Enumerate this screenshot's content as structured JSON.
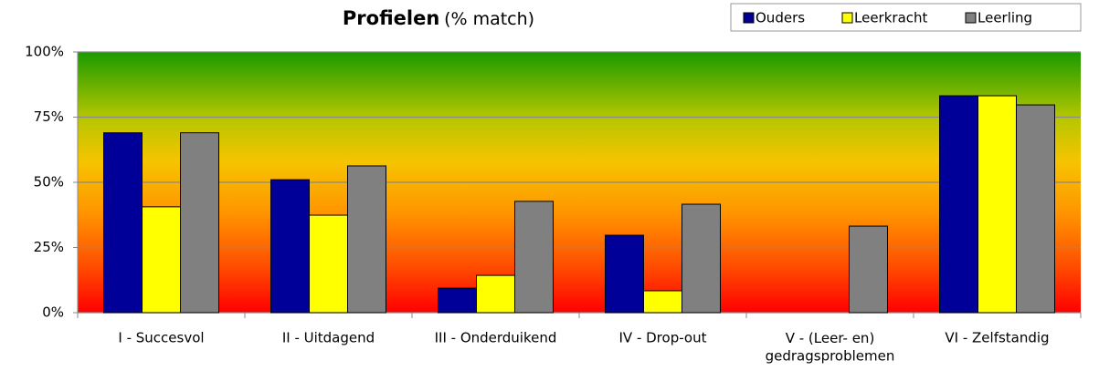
{
  "chart_data": {
    "type": "bar",
    "title": "Profielen",
    "subtitle": "(% match)",
    "categories": [
      "I - Succesvol",
      "II - Uitdagend",
      "III - Onderduikend",
      "IV - Drop-out",
      "V - (Leer- en)\ngedragsproblemen",
      "VI - Zelfstandig"
    ],
    "series": [
      {
        "name": "Ouders",
        "color": "#000099",
        "values": [
          69,
          51,
          9.4,
          29.7,
          null,
          83.2
        ]
      },
      {
        "name": "Leerkracht",
        "color": "#ffff00",
        "values": [
          40.6,
          37.4,
          14.3,
          8.4,
          null,
          83.2
        ]
      },
      {
        "name": "Leerling",
        "color": "#808080",
        "values": [
          69,
          56.3,
          42.7,
          41.6,
          33.2,
          79.7
        ]
      }
    ],
    "ylim": [
      0,
      100
    ],
    "yticks": [
      {
        "value": 0,
        "label": "0%"
      },
      {
        "value": 25,
        "label": "25%"
      },
      {
        "value": 50,
        "label": "50%"
      },
      {
        "value": 75,
        "label": "75%"
      },
      {
        "value": 100,
        "label": "100%"
      }
    ],
    "grid": true,
    "legend": "top-right"
  }
}
